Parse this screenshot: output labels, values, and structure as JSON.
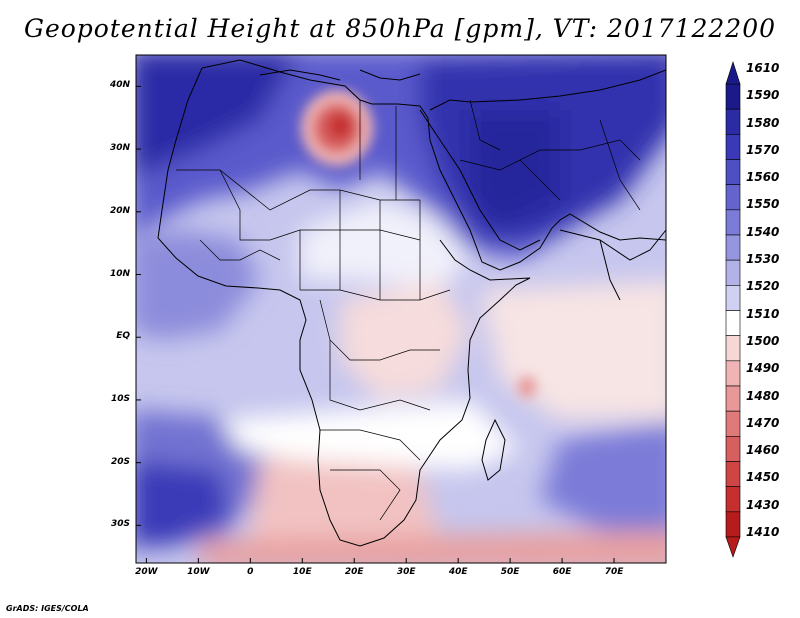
{
  "title": "Geopotential Height at 850hPa [gpm], VT: 2017122200",
  "credit": "GrADS: IGES/COLA",
  "map": {
    "lat_labels": [
      "40N",
      "30N",
      "20N",
      "10N",
      "EQ",
      "10S",
      "20S",
      "30S"
    ],
    "lat_values": [
      40,
      30,
      20,
      10,
      0,
      -10,
      -20,
      -30
    ],
    "lon_labels": [
      "20W",
      "10W",
      "0",
      "10E",
      "20E",
      "30E",
      "40E",
      "50E",
      "60E",
      "70E"
    ],
    "lon_values": [
      -20,
      -10,
      0,
      10,
      20,
      30,
      40,
      50,
      60,
      70
    ],
    "lon_range": [
      -22,
      80
    ],
    "lat_range": [
      -36,
      45
    ]
  },
  "colorbar": {
    "labels": [
      "1610",
      "1590",
      "1580",
      "1570",
      "1560",
      "1550",
      "1540",
      "1530",
      "1520",
      "1510",
      "1500",
      "1490",
      "1480",
      "1470",
      "1460",
      "1450",
      "1430",
      "1410"
    ],
    "colors": [
      "#1a1a8a",
      "#2b2ba6",
      "#3a3ab8",
      "#4f4fc4",
      "#6464cf",
      "#7b7bd8",
      "#9696e0",
      "#b2b2e8",
      "#d0d0f2",
      "#ffffff",
      "#f7d6d6",
      "#f0b4b4",
      "#e89898",
      "#e07a7a",
      "#d85f5f",
      "#cf4545",
      "#c52f2f",
      "#b71c1c"
    ]
  }
}
